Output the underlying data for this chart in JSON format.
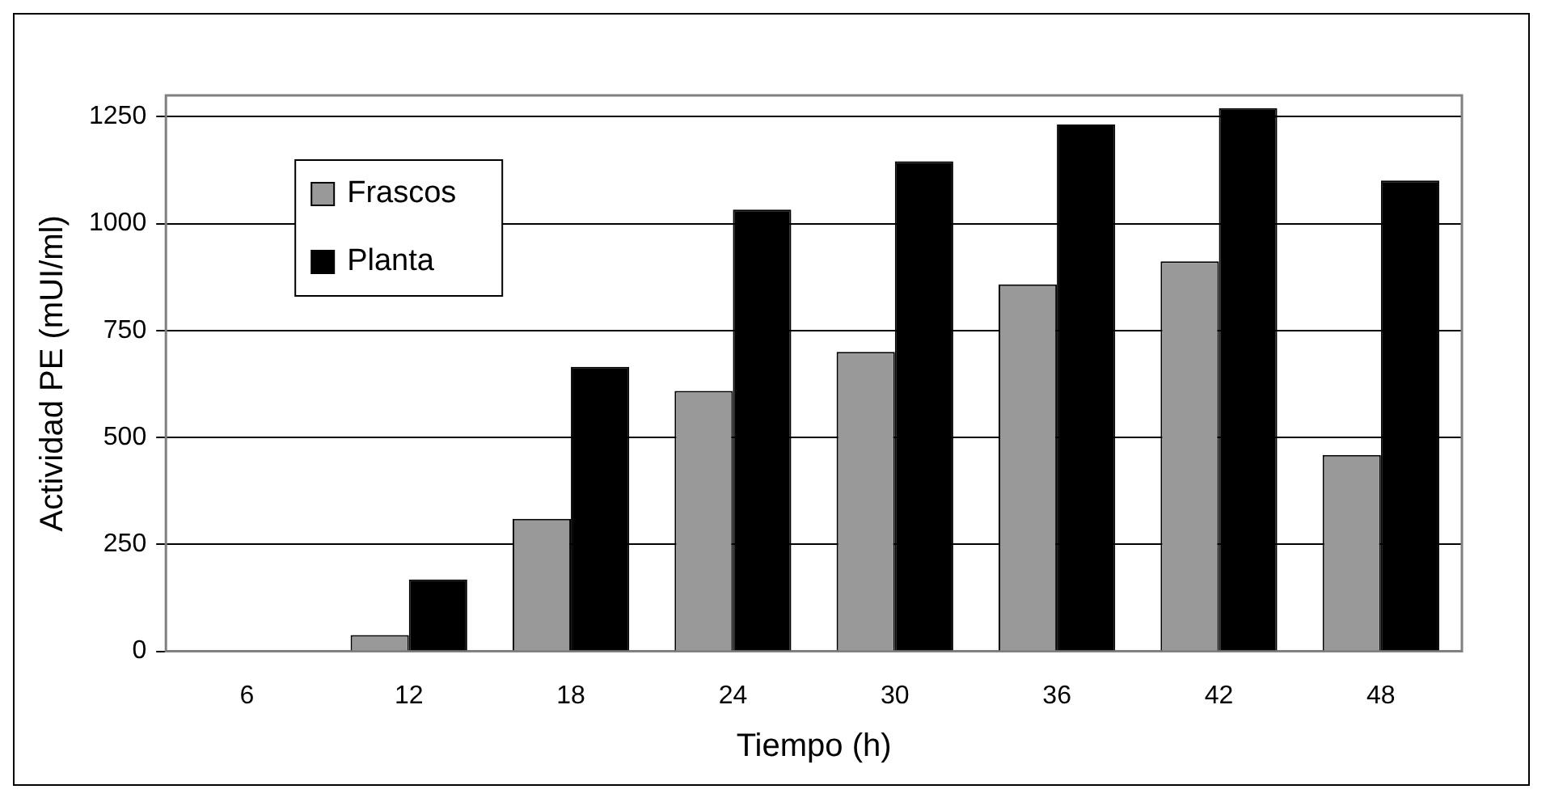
{
  "chart_data": {
    "type": "bar",
    "xlabel": "Tiempo (h)",
    "ylabel": "Actividad PE (mUI/ml)",
    "categories": [
      "6",
      "12",
      "18",
      "24",
      "30",
      "36",
      "42",
      "48"
    ],
    "series": [
      {
        "name": "Frascos",
        "color": "#999999",
        "values": [
          0,
          38,
          310,
          609,
          700,
          858,
          912,
          459
        ]
      },
      {
        "name": "Planta",
        "color": "#000000",
        "values": [
          0,
          168,
          665,
          1033,
          1146,
          1232,
          1270,
          1101
        ]
      }
    ],
    "ylim": [
      0,
      1300
    ],
    "yticks": [
      0,
      250,
      500,
      750,
      1000,
      1250
    ],
    "grid": "y",
    "legend": "top left"
  }
}
